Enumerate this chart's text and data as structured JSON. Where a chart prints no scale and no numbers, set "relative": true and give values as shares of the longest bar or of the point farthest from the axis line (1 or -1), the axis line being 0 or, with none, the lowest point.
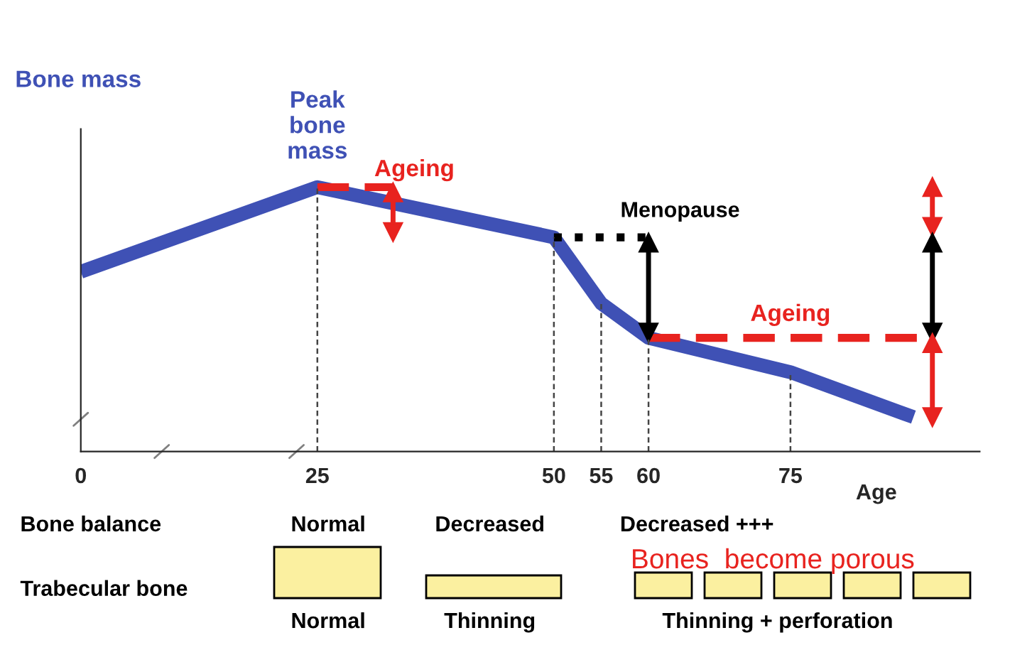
{
  "chart_data": {
    "type": "line",
    "relative": true,
    "xlabel": "Age",
    "xlim": [
      0,
      95
    ],
    "xticks": [
      0,
      25,
      50,
      55,
      60,
      75
    ],
    "grid": false,
    "legend": false,
    "series": [
      {
        "color": "#3f51b5",
        "x": [
          0,
          25,
          50,
          55,
          60,
          75,
          88
        ],
        "values": [
          0.68,
          1,
          0.81,
          0.56,
          0.43,
          0.3,
          0.13
        ]
      },
      {
        "color": "#e8231f",
        "line_style": "dashed",
        "x": [
          25,
          33
        ],
        "values": [
          1,
          1
        ]
      },
      {
        "color": "#000000",
        "line_style": "dotted",
        "x": [
          50,
          60
        ],
        "values": [
          0.81,
          0.81
        ]
      },
      {
        "color": "#e8231f",
        "line_style": "dashed",
        "x": [
          60,
          90
        ],
        "values": [
          0.43,
          0.43
        ]
      },
      {
        "color": "#e8231f",
        "marker": "triangle",
        "x": [
          33,
          33
        ],
        "values": [
          0.98,
          0.83
        ]
      },
      {
        "color": "#000000",
        "marker": "triangle",
        "x": [
          60,
          60
        ],
        "values": [
          0.79,
          0.45
        ]
      },
      {
        "color": "#e8231f",
        "marker": "triangle",
        "x": [
          90,
          90
        ],
        "values": [
          1,
          0.85
        ]
      },
      {
        "color": "#000000",
        "marker": "triangle",
        "x": [
          90,
          90
        ],
        "values": [
          0.79,
          0.45
        ]
      },
      {
        "color": "#e8231f",
        "marker": "triangle",
        "x": [
          90,
          90
        ],
        "values": [
          0.41,
          0.13
        ]
      },
      {
        "color": "#444444",
        "line_style": "dashed",
        "x": [
          25,
          25
        ],
        "values": [
          0,
          1
        ]
      },
      {
        "color": "#444444",
        "line_style": "dashed",
        "x": [
          50,
          50
        ],
        "values": [
          0,
          0.81
        ]
      },
      {
        "color": "#444444",
        "line_style": "dashed",
        "x": [
          55,
          55
        ],
        "values": [
          0,
          0.56
        ]
      },
      {
        "color": "#444444",
        "line_style": "dashed",
        "x": [
          60,
          60
        ],
        "values": [
          0,
          0.43
        ]
      },
      {
        "color": "#444444",
        "line_style": "dashed",
        "x": [
          75,
          75
        ],
        "values": [
          0,
          0.3
        ]
      }
    ],
    "annotations": [
      "Bone mass",
      {
        "text": "Peak\nbone\nmass",
        "x": 25,
        "y": 1
      },
      {
        "text": "Ageing",
        "x": 29,
        "y": 1
      },
      {
        "text": "Menopause",
        "x": 55,
        "y": 0.81
      },
      {
        "text": "Ageing",
        "x": 75,
        "y": 0.43
      },
      "Bone balance",
      "Normal",
      "Decreased",
      "Decreased +++",
      "Bones  become porous",
      "Trabecular bone",
      "Normal",
      "Thinning",
      "Thinning + perforation"
    ]
  }
}
